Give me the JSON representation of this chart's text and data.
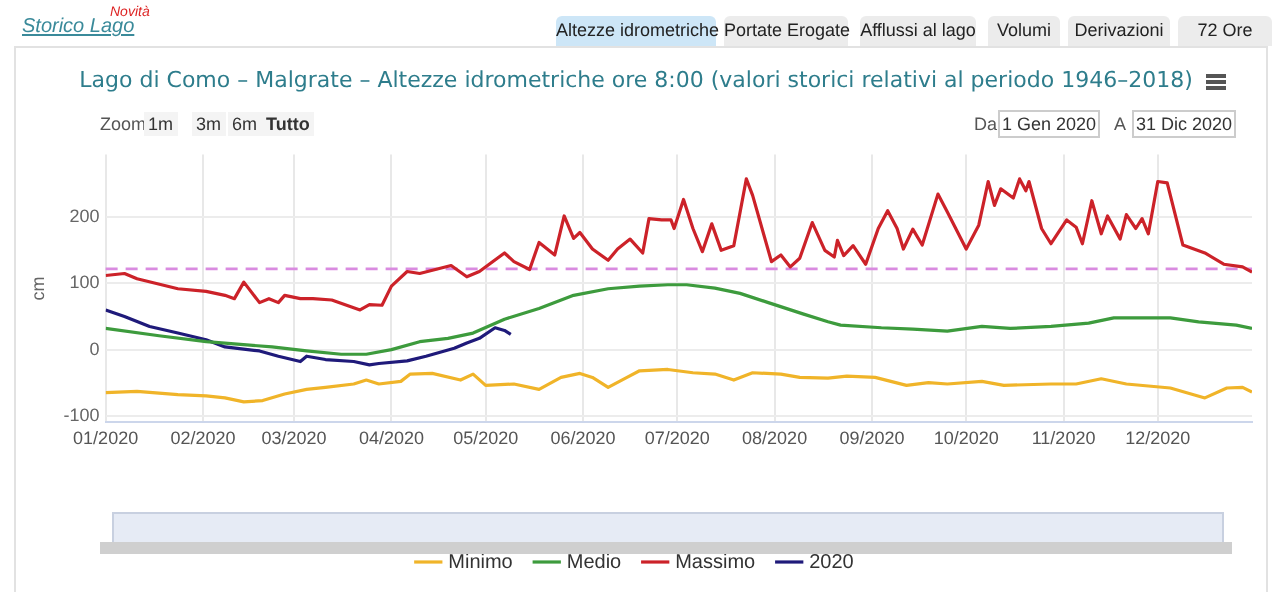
{
  "chart_data": {
    "type": "line",
    "title": "Lago di Como – Malgrate – Altezze idrometriche ore 8:00 (valori storici relativi al periodo 1946–2018)",
    "ylabel": "cm",
    "annotations": [
      "Storico Lago",
      "Novità",
      "Altezze idrometriche",
      "Portate Erogate",
      "Afflussi al lago",
      "Volumi",
      "Derivazioni",
      "72 Ore",
      "Zoom",
      "1m",
      "3m",
      "6m",
      "Tutto",
      "Da",
      "1 Gen 2020",
      "A",
      "31 Dic 2020"
    ],
    "xlim": [
      "2020-01-01",
      "2020-12-31"
    ],
    "xticks": [
      {
        "value": "2020-01-01",
        "label": "01/2020"
      },
      {
        "value": "2020-02-01",
        "label": "02/2020"
      },
      {
        "value": "2020-03-01",
        "label": "03/2020"
      },
      {
        "value": "2020-04-01",
        "label": "04/2020"
      },
      {
        "value": "2020-05-01",
        "label": "05/2020"
      },
      {
        "value": "2020-06-01",
        "label": "06/2020"
      },
      {
        "value": "2020-07-01",
        "label": "07/2020"
      },
      {
        "value": "2020-08-01",
        "label": "08/2020"
      },
      {
        "value": "2020-09-01",
        "label": "09/2020"
      },
      {
        "value": "2020-10-01",
        "label": "10/2020"
      },
      {
        "value": "2020-11-01",
        "label": "11/2020"
      },
      {
        "value": "2020-12-01",
        "label": "12/2020"
      }
    ],
    "ylim": [
      -110,
      295
    ],
    "yticks": [
      -100,
      0,
      100,
      200
    ],
    "grid": true,
    "legend": "bottom",
    "marker": "none",
    "line_style": "solid",
    "ref_lines": [
      {
        "axis": "y",
        "value": 122,
        "color": "#d98be0",
        "line_style": "dashed"
      }
    ],
    "series": [
      {
        "name": "Minimo",
        "color": "#f0b429",
        "x": [
          "2020-01-01",
          "2020-01-11",
          "2020-01-24",
          "2020-02-02",
          "2020-02-08",
          "2020-02-14",
          "2020-02-20",
          "2020-02-27",
          "2020-03-05",
          "2020-03-11",
          "2020-03-20",
          "2020-03-24",
          "2020-03-28",
          "2020-04-04",
          "2020-04-07",
          "2020-04-14",
          "2020-04-23",
          "2020-04-27",
          "2020-05-01",
          "2020-05-10",
          "2020-05-18",
          "2020-05-25",
          "2020-05-31",
          "2020-06-04",
          "2020-06-09",
          "2020-06-15",
          "2020-06-19",
          "2020-06-28",
          "2020-07-06",
          "2020-07-13",
          "2020-07-19",
          "2020-07-25",
          "2020-08-03",
          "2020-08-09",
          "2020-08-18",
          "2020-08-24",
          "2020-09-02",
          "2020-09-12",
          "2020-09-19",
          "2020-09-25",
          "2020-10-06",
          "2020-10-13",
          "2020-10-28",
          "2020-11-05",
          "2020-11-13",
          "2020-11-21",
          "2020-12-05",
          "2020-12-16",
          "2020-12-23",
          "2020-12-28",
          "2020-12-31"
        ],
        "values": [
          -65,
          -63,
          -68,
          -70,
          -73,
          -79,
          -77,
          -67,
          -60,
          -57,
          -52,
          -46,
          -52,
          -48,
          -37,
          -36,
          -46,
          -37,
          -54,
          -52,
          -60,
          -42,
          -36,
          -42,
          -57,
          -42,
          -32,
          -30,
          -35,
          -37,
          -46,
          -35,
          -37,
          -42,
          -43,
          -40,
          -42,
          -54,
          -50,
          -52,
          -48,
          -54,
          -52,
          -52,
          -44,
          -52,
          -58,
          -73,
          -58,
          -57,
          -64
        ]
      },
      {
        "name": "Medio",
        "color": "#3d9b3d",
        "x": [
          "2020-01-01",
          "2020-01-18",
          "2020-02-02",
          "2020-02-23",
          "2020-03-05",
          "2020-03-16",
          "2020-03-24",
          "2020-04-01",
          "2020-04-10",
          "2020-04-19",
          "2020-04-27",
          "2020-05-07",
          "2020-05-18",
          "2020-05-29",
          "2020-06-09",
          "2020-06-19",
          "2020-06-28",
          "2020-07-04",
          "2020-07-13",
          "2020-07-21",
          "2020-07-30",
          "2020-08-10",
          "2020-08-18",
          "2020-08-22",
          "2020-09-04",
          "2020-09-14",
          "2020-09-25",
          "2020-10-06",
          "2020-10-15",
          "2020-10-28",
          "2020-11-09",
          "2020-11-17",
          "2020-12-05",
          "2020-12-14",
          "2020-12-26",
          "2020-12-31"
        ],
        "values": [
          32,
          21,
          12,
          4,
          -2,
          -7,
          -7,
          0,
          12,
          17,
          25,
          46,
          62,
          82,
          92,
          96,
          98,
          98,
          93,
          85,
          71,
          54,
          42,
          37,
          33,
          31,
          28,
          35,
          32,
          35,
          40,
          48,
          48,
          42,
          37,
          32
        ]
      },
      {
        "name": "Massimo",
        "color": "#cc2229",
        "x": [
          "2020-01-01",
          "2020-01-07",
          "2020-01-11",
          "2020-01-24",
          "2020-02-02",
          "2020-02-08",
          "2020-02-11",
          "2020-02-14",
          "2020-02-19",
          "2020-02-22",
          "2020-02-25",
          "2020-02-27",
          "2020-03-03",
          "2020-03-07",
          "2020-03-13",
          "2020-03-22",
          "2020-03-25",
          "2020-03-29",
          "2020-04-01",
          "2020-04-06",
          "2020-04-10",
          "2020-04-20",
          "2020-04-25",
          "2020-04-29",
          "2020-05-07",
          "2020-05-10",
          "2020-05-15",
          "2020-05-18",
          "2020-05-23",
          "2020-05-26",
          "2020-05-29",
          "2020-05-31",
          "2020-06-04",
          "2020-06-09",
          "2020-06-12",
          "2020-06-16",
          "2020-06-20",
          "2020-06-22",
          "2020-06-26",
          "2020-06-29",
          "2020-06-30",
          "2020-07-03",
          "2020-07-06",
          "2020-07-09",
          "2020-07-12",
          "2020-07-15",
          "2020-07-19",
          "2020-07-23",
          "2020-07-25",
          "2020-07-31",
          "2020-08-03",
          "2020-08-06",
          "2020-08-09",
          "2020-08-13",
          "2020-08-17",
          "2020-08-20",
          "2020-08-21",
          "2020-08-23",
          "2020-08-26",
          "2020-08-30",
          "2020-09-03",
          "2020-09-06",
          "2020-09-09",
          "2020-09-11",
          "2020-09-14",
          "2020-09-17",
          "2020-09-22",
          "2020-09-25",
          "2020-10-01",
          "2020-10-05",
          "2020-10-08",
          "2020-10-10",
          "2020-10-12",
          "2020-10-16",
          "2020-10-18",
          "2020-10-20",
          "2020-10-21",
          "2020-10-25",
          "2020-10-28",
          "2020-11-02",
          "2020-11-05",
          "2020-11-07",
          "2020-11-10",
          "2020-11-13",
          "2020-11-15",
          "2020-11-19",
          "2020-11-21",
          "2020-11-24",
          "2020-11-26",
          "2020-11-28",
          "2020-12-01",
          "2020-12-04",
          "2020-12-09",
          "2020-12-16",
          "2020-12-22",
          "2020-12-28",
          "2020-12-31"
        ],
        "values": [
          112,
          115,
          107,
          92,
          88,
          82,
          77,
          102,
          71,
          77,
          71,
          82,
          77,
          77,
          75,
          60,
          68,
          67,
          96,
          118,
          115,
          127,
          110,
          118,
          146,
          133,
          121,
          162,
          143,
          202,
          168,
          177,
          152,
          135,
          152,
          167,
          146,
          198,
          196,
          196,
          183,
          227,
          183,
          148,
          190,
          150,
          157,
          258,
          233,
          133,
          143,
          125,
          138,
          192,
          150,
          140,
          165,
          142,
          157,
          129,
          183,
          210,
          183,
          152,
          182,
          158,
          235,
          208,
          152,
          188,
          254,
          218,
          243,
          229,
          258,
          240,
          254,
          183,
          160,
          196,
          185,
          160,
          225,
          175,
          202,
          167,
          204,
          183,
          198,
          175,
          254,
          252,
          158,
          146,
          129,
          125,
          117
        ]
      },
      {
        "name": "2020",
        "color": "#1f1a7a",
        "x": [
          "2020-01-01",
          "2020-01-07",
          "2020-01-15",
          "2020-01-24",
          "2020-02-02",
          "2020-02-08",
          "2020-02-19",
          "2020-02-25",
          "2020-03-03",
          "2020-03-05",
          "2020-03-11",
          "2020-03-20",
          "2020-03-25",
          "2020-03-28",
          "2020-04-06",
          "2020-04-12",
          "2020-04-21",
          "2020-04-25",
          "2020-04-29",
          "2020-05-04",
          "2020-05-07",
          "2020-05-09"
        ],
        "values": [
          60,
          50,
          35,
          25,
          15,
          4,
          -2,
          -10,
          -18,
          -10,
          -15,
          -18,
          -23,
          -21,
          -17,
          -10,
          2,
          10,
          17,
          33,
          29,
          23
        ]
      }
    ]
  }
}
